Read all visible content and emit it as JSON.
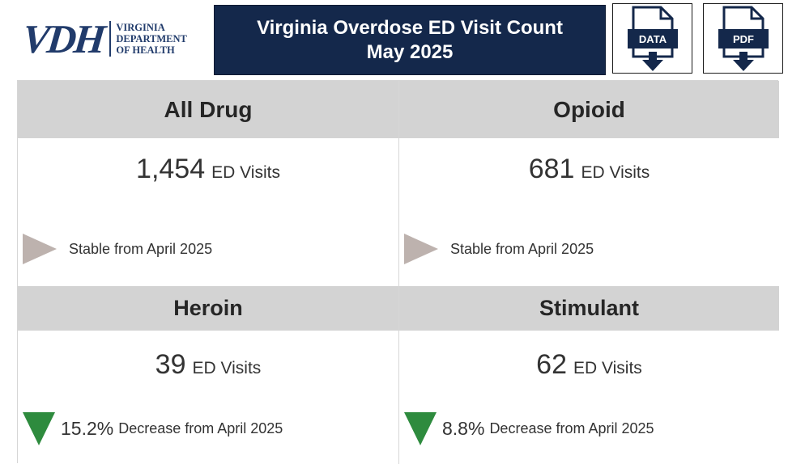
{
  "header": {
    "logo": {
      "mark": "VDH",
      "lines": [
        "VIRGINIA",
        "DEPARTMENT",
        "OF HEALTH"
      ],
      "color": "#213b6b"
    },
    "title_line1": "Virginia Overdose ED Visit Count",
    "title_line2": "May 2025",
    "title_bg": "#14284b",
    "buttons": [
      {
        "label": "DATA",
        "icon": "data-download-icon"
      },
      {
        "label": "PDF",
        "icon": "pdf-download-icon"
      }
    ],
    "button_icon_color": "#14284b"
  },
  "cards": [
    {
      "title": "All Drug",
      "count": "1,454",
      "unit": "ED Visits",
      "trend": "stable",
      "trend_text": "Stable from April 2025"
    },
    {
      "title": "Opioid",
      "count": "681",
      "unit": "ED Visits",
      "trend": "stable",
      "trend_text": "Stable from April 2025"
    },
    {
      "title": "Heroin",
      "count": "39",
      "unit": "ED Visits",
      "trend": "decrease",
      "trend_pct": "15.2%",
      "trend_text": "Decrease from April 2025"
    },
    {
      "title": "Stimulant",
      "count": "62",
      "unit": "ED Visits",
      "trend": "decrease",
      "trend_pct": "8.8%",
      "trend_text": "Decrease from April 2025"
    }
  ],
  "colors": {
    "stable": "#bdb2ae",
    "decrease": "#2e8b3e",
    "header_gray": "#d3d3d3"
  }
}
